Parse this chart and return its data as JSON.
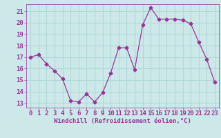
{
  "x": [
    0,
    1,
    2,
    3,
    4,
    5,
    6,
    7,
    8,
    9,
    10,
    11,
    12,
    13,
    14,
    15,
    16,
    17,
    18,
    19,
    20,
    21,
    22,
    23
  ],
  "y": [
    17.0,
    17.2,
    16.4,
    15.8,
    15.1,
    13.2,
    13.1,
    13.8,
    13.1,
    13.9,
    15.6,
    17.8,
    17.8,
    15.9,
    19.8,
    21.3,
    20.3,
    20.3,
    20.3,
    20.2,
    19.9,
    18.3,
    16.8,
    14.8
  ],
  "line_color": "#993399",
  "marker": "D",
  "marker_size": 2.5,
  "bg_color": "#cce8e8",
  "grid_color": "#b0d8d8",
  "xlabel": "Windchill (Refroidissement éolien,°C)",
  "ylabel_ticks": [
    13,
    14,
    15,
    16,
    17,
    18,
    19,
    20,
    21
  ],
  "ylim": [
    12.6,
    21.6
  ],
  "xlim": [
    -0.5,
    23.5
  ],
  "tick_color": "#993399",
  "font_size": 6.5,
  "xlabel_fontsize": 6.5
}
